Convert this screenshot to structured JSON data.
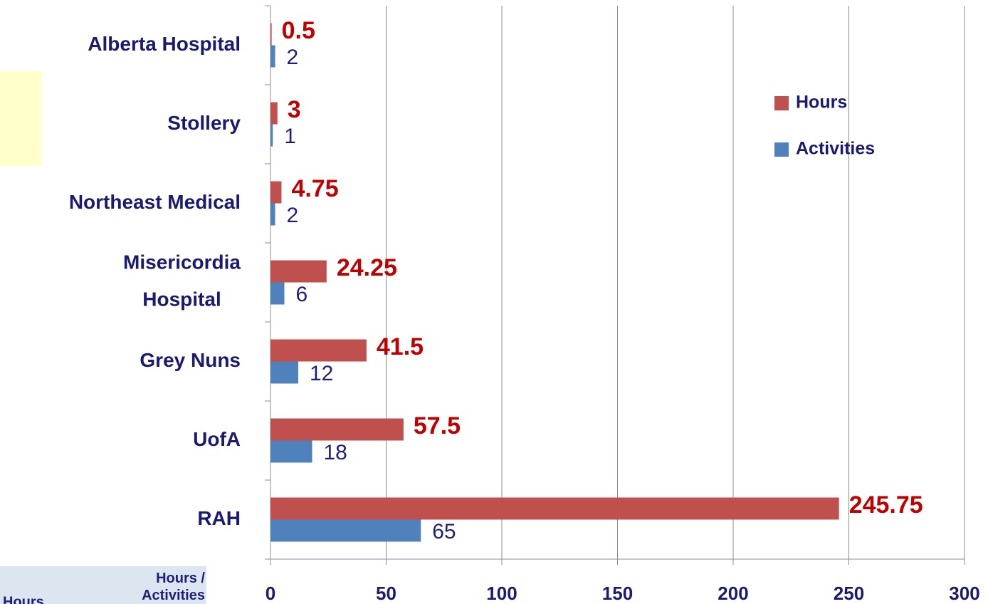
{
  "chart_data": {
    "type": "barh",
    "categories": [
      "Alberta Hospital",
      "Stollery",
      "Northeast Medical",
      "Misericordia Hospital",
      "Grey Nuns",
      "UofA",
      "RAH"
    ],
    "series": [
      {
        "name": "Hours",
        "color": "#c0504d",
        "label_color": "#c00000",
        "values": [
          0.5,
          3,
          4.75,
          24.25,
          41.5,
          57.5,
          245.75
        ]
      },
      {
        "name": "Activities",
        "color": "#4f81bd",
        "label_color": "#1f1f7a",
        "values": [
          2,
          1,
          2,
          6,
          12,
          18,
          65
        ]
      }
    ],
    "xlim": [
      0,
      300
    ],
    "xticks": [
      0,
      50,
      100,
      150,
      200,
      250,
      300
    ],
    "grid": true,
    "legend": "right"
  },
  "corner_cells": [
    "Hours",
    "Hours / Activities"
  ]
}
